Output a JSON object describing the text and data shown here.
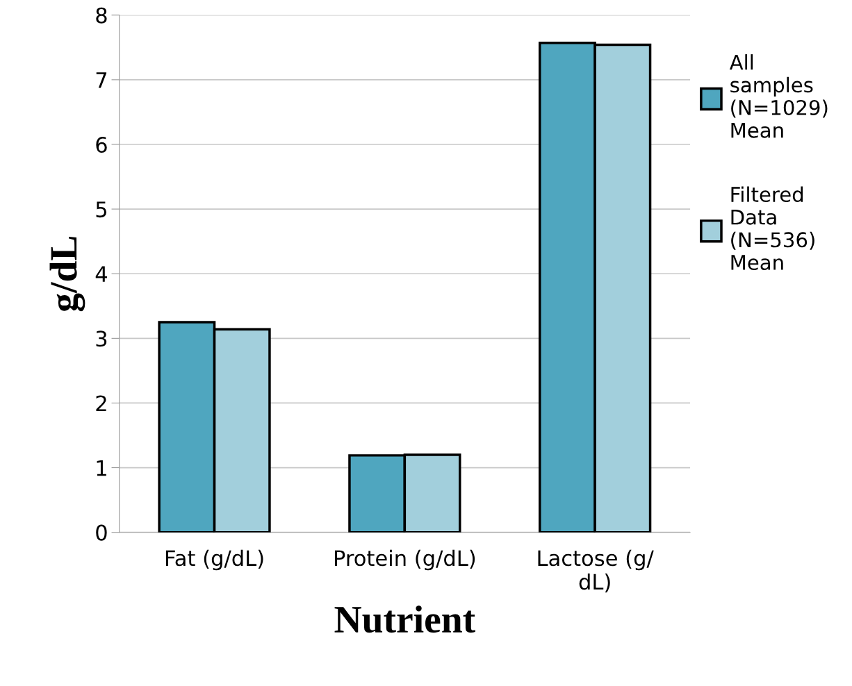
{
  "chart_data": {
    "type": "bar",
    "xlabel": "Nutrient",
    "ylabel": "g/dL",
    "categories": [
      "Fat (g/dL)",
      "Protein (g/dL)",
      "Lactose (g/\ndL)"
    ],
    "series": [
      {
        "name": "All\nsamples\n(N=1029)\nMean",
        "color": "#4fa6bf",
        "values": [
          3.25,
          1.19,
          7.57
        ]
      },
      {
        "name": "Filtered\nData\n(N=536)\nMean",
        "color": "#a2cfdc",
        "values": [
          3.14,
          1.2,
          7.54
        ]
      }
    ],
    "ylim": [
      0,
      8
    ],
    "yticks": [
      0,
      1,
      2,
      3,
      4,
      5,
      6,
      7,
      8
    ],
    "grid": "y",
    "legend": "right"
  }
}
